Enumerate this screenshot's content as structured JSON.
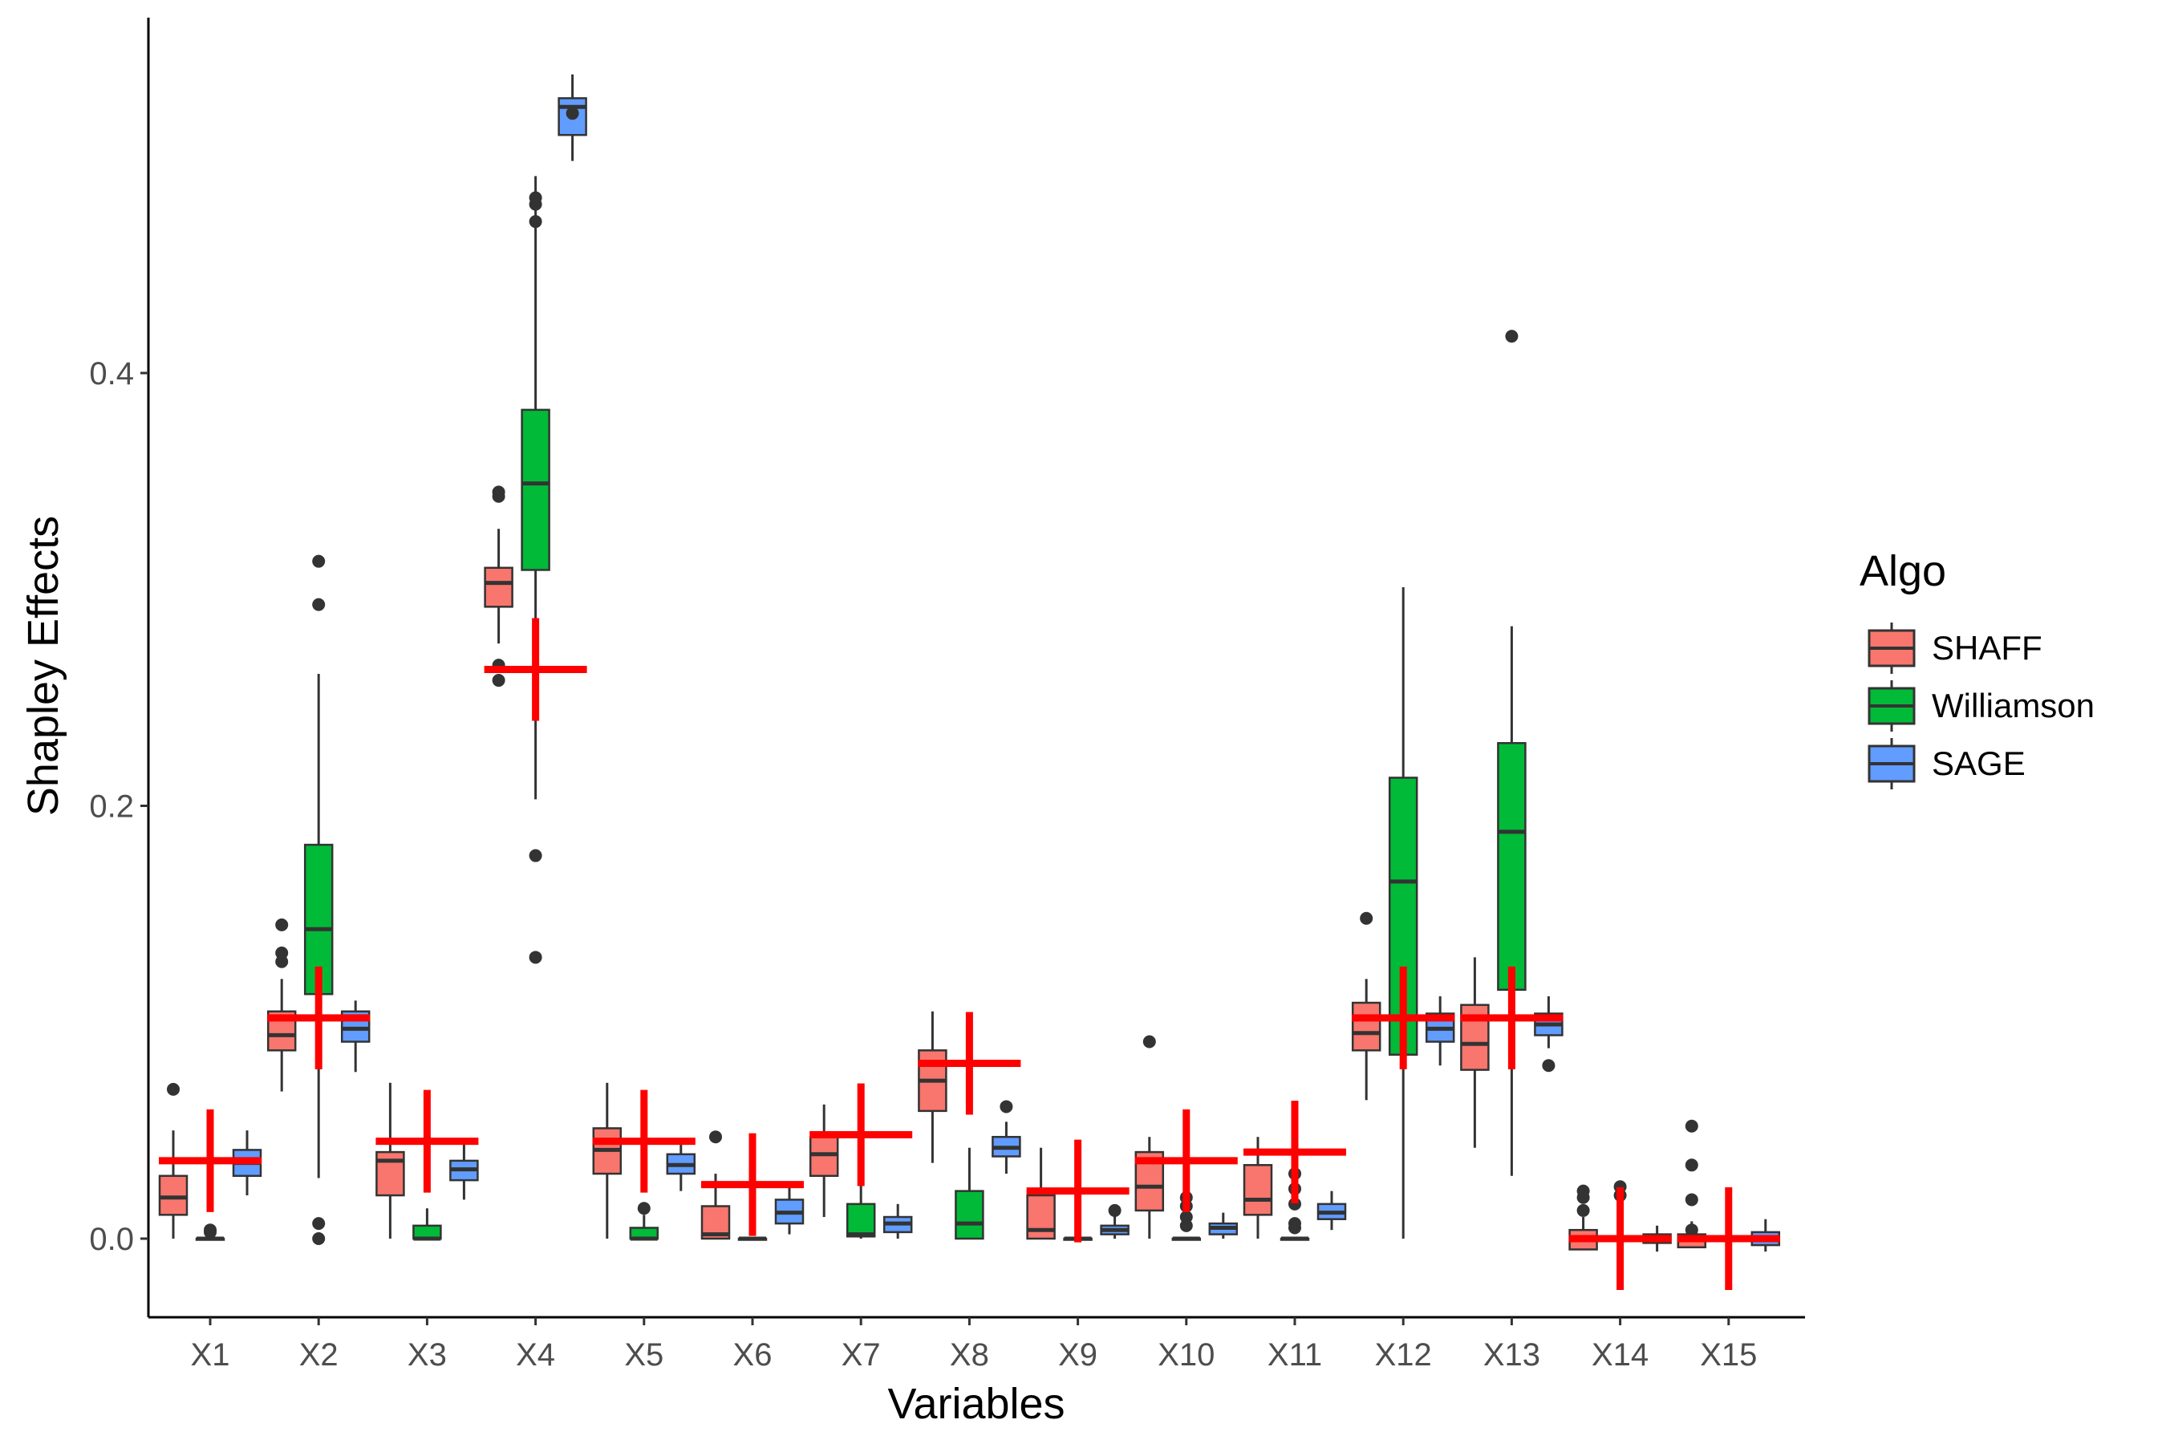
{
  "chart_data": {
    "type": "boxplot",
    "title": "",
    "xlabel": "Variables",
    "ylabel": "Shapley Effects",
    "ylim": [
      -0.037,
      0.555
    ],
    "yticks": [
      0.0,
      0.2,
      0.4
    ],
    "ytick_labels": [
      "0.0",
      "0.2",
      "0.4"
    ],
    "grid": false,
    "legend_position": "right",
    "legend_title": "Algo",
    "categories": [
      "X1",
      "X2",
      "X3",
      "X4",
      "X5",
      "X6",
      "X7",
      "X8",
      "X9",
      "X10",
      "X11",
      "X12",
      "X13",
      "X14",
      "X15"
    ],
    "series": [
      {
        "name": "SHAFF",
        "color": "#F8766D",
        "boxes": [
          {
            "q1": 0.011,
            "median": 0.019,
            "q3": 0.029,
            "whislo": 0.0,
            "whishi": 0.05,
            "outliers": [
              0.069
            ]
          },
          {
            "q1": 0.087,
            "median": 0.094,
            "q3": 0.105,
            "whislo": 0.068,
            "whishi": 0.12,
            "outliers": [
              0.145,
              0.132,
              0.128
            ]
          },
          {
            "q1": 0.02,
            "median": 0.036,
            "q3": 0.04,
            "whislo": 0.0,
            "whishi": 0.072,
            "outliers": []
          },
          {
            "q1": 0.292,
            "median": 0.303,
            "q3": 0.31,
            "whislo": 0.275,
            "whishi": 0.328,
            "outliers": [
              0.345,
              0.343,
              0.265,
              0.258
            ]
          },
          {
            "q1": 0.03,
            "median": 0.041,
            "q3": 0.051,
            "whislo": 0.0,
            "whishi": 0.072,
            "outliers": []
          },
          {
            "q1": 0.0,
            "median": 0.002,
            "q3": 0.015,
            "whislo": 0.0,
            "whishi": 0.03,
            "outliers": [
              0.047
            ]
          },
          {
            "q1": 0.029,
            "median": 0.039,
            "q3": 0.047,
            "whislo": 0.01,
            "whishi": 0.062,
            "outliers": []
          },
          {
            "q1": 0.059,
            "median": 0.073,
            "q3": 0.087,
            "whislo": 0.035,
            "whishi": 0.105,
            "outliers": []
          },
          {
            "q1": 0.0,
            "median": 0.004,
            "q3": 0.02,
            "whislo": 0.0,
            "whishi": 0.042,
            "outliers": []
          },
          {
            "q1": 0.013,
            "median": 0.024,
            "q3": 0.04,
            "whislo": 0.0,
            "whishi": 0.047,
            "outliers": [
              0.091
            ]
          },
          {
            "q1": 0.011,
            "median": 0.018,
            "q3": 0.034,
            "whislo": 0.0,
            "whishi": 0.047,
            "outliers": []
          },
          {
            "q1": 0.087,
            "median": 0.095,
            "q3": 0.109,
            "whislo": 0.064,
            "whishi": 0.12,
            "outliers": [
              0.148
            ]
          },
          {
            "q1": 0.078,
            "median": 0.09,
            "q3": 0.108,
            "whislo": 0.042,
            "whishi": 0.13,
            "outliers": []
          },
          {
            "q1": -0.005,
            "median": 0.0,
            "q3": 0.004,
            "whislo": -0.005,
            "whishi": 0.01,
            "outliers": [
              0.022,
              0.019,
              0.013
            ]
          },
          {
            "q1": -0.004,
            "median": 0.0,
            "q3": 0.002,
            "whislo": -0.004,
            "whishi": 0.008,
            "outliers": [
              0.052,
              0.034,
              0.018,
              0.004
            ]
          }
        ]
      },
      {
        "name": "Williamson",
        "color": "#00BA38",
        "boxes": [
          {
            "q1": 0.0,
            "median": 0.0,
            "q3": 0.0,
            "whislo": 0.0,
            "whishi": 0.0,
            "outliers": [
              0.004,
              0.003
            ]
          },
          {
            "q1": 0.113,
            "median": 0.143,
            "q3": 0.182,
            "whislo": 0.028,
            "whishi": 0.261,
            "outliers": [
              0.313,
              0.293,
              0.007,
              0.0
            ]
          },
          {
            "q1": 0.0,
            "median": 0.0,
            "q3": 0.006,
            "whislo": 0.0,
            "whishi": 0.014,
            "outliers": []
          },
          {
            "q1": 0.309,
            "median": 0.349,
            "q3": 0.383,
            "whislo": 0.203,
            "whishi": 0.491,
            "outliers": [
              0.481,
              0.478,
              0.47,
              0.177,
              0.13
            ]
          },
          {
            "q1": 0.0,
            "median": 0.0,
            "q3": 0.005,
            "whislo": 0.0,
            "whishi": 0.011,
            "outliers": [
              0.014
            ]
          },
          {
            "q1": 0.0,
            "median": 0.0,
            "q3": 0.0,
            "whislo": 0.0,
            "whishi": 0.0,
            "outliers": []
          },
          {
            "q1": 0.001,
            "median": 0.002,
            "q3": 0.016,
            "whislo": 0.0,
            "whishi": 0.032,
            "outliers": []
          },
          {
            "q1": 0.0,
            "median": 0.007,
            "q3": 0.022,
            "whislo": 0.0,
            "whishi": 0.042,
            "outliers": []
          },
          {
            "q1": 0.0,
            "median": 0.0,
            "q3": 0.0,
            "whislo": 0.0,
            "whishi": 0.0,
            "outliers": []
          },
          {
            "q1": 0.0,
            "median": 0.0,
            "q3": 0.0,
            "whislo": 0.0,
            "whishi": 0.0,
            "outliers": [
              0.019,
              0.015,
              0.01,
              0.006
            ]
          },
          {
            "q1": 0.0,
            "median": 0.0,
            "q3": 0.0,
            "whislo": 0.0,
            "whishi": 0.0,
            "outliers": [
              0.03,
              0.023,
              0.016,
              0.007,
              0.005
            ]
          },
          {
            "q1": 0.085,
            "median": 0.165,
            "q3": 0.213,
            "whislo": 0.0,
            "whishi": 0.301,
            "outliers": []
          },
          {
            "q1": 0.115,
            "median": 0.188,
            "q3": 0.229,
            "whislo": 0.029,
            "whishi": 0.283,
            "outliers": [
              0.417
            ]
          },
          {
            "q1": 0.0,
            "median": 0.0,
            "q3": 0.0,
            "whislo": 0.0,
            "whishi": 0.0,
            "outliers": [
              0.024,
              0.02
            ]
          },
          {
            "q1": 0.0,
            "median": 0.0,
            "q3": 0.0,
            "whislo": 0.0,
            "whishi": 0.0,
            "outliers": []
          }
        ]
      },
      {
        "name": "SAGE",
        "color": "#619CFF",
        "boxes": [
          {
            "q1": 0.029,
            "median": 0.035,
            "q3": 0.041,
            "whislo": 0.02,
            "whishi": 0.05,
            "outliers": []
          },
          {
            "q1": 0.091,
            "median": 0.097,
            "q3": 0.105,
            "whislo": 0.077,
            "whishi": 0.11,
            "outliers": []
          },
          {
            "q1": 0.027,
            "median": 0.032,
            "q3": 0.036,
            "whislo": 0.018,
            "whishi": 0.044,
            "outliers": []
          },
          {
            "q1": 0.51,
            "median": 0.523,
            "q3": 0.527,
            "whislo": 0.498,
            "whishi": 0.538,
            "outliers": [
              0.52
            ]
          },
          {
            "q1": 0.03,
            "median": 0.034,
            "q3": 0.039,
            "whislo": 0.022,
            "whishi": 0.046,
            "outliers": []
          },
          {
            "q1": 0.007,
            "median": 0.012,
            "q3": 0.018,
            "whislo": 0.002,
            "whishi": 0.026,
            "outliers": []
          },
          {
            "q1": 0.003,
            "median": 0.007,
            "q3": 0.01,
            "whislo": 0.0,
            "whishi": 0.016,
            "outliers": []
          },
          {
            "q1": 0.038,
            "median": 0.042,
            "q3": 0.047,
            "whislo": 0.03,
            "whishi": 0.054,
            "outliers": [
              0.061
            ]
          },
          {
            "q1": 0.002,
            "median": 0.004,
            "q3": 0.006,
            "whislo": 0.0,
            "whishi": 0.012,
            "outliers": [
              0.013
            ]
          },
          {
            "q1": 0.002,
            "median": 0.005,
            "q3": 0.007,
            "whislo": 0.0,
            "whishi": 0.012,
            "outliers": []
          },
          {
            "q1": 0.009,
            "median": 0.012,
            "q3": 0.016,
            "whislo": 0.004,
            "whishi": 0.022,
            "outliers": []
          },
          {
            "q1": 0.091,
            "median": 0.097,
            "q3": 0.104,
            "whislo": 0.08,
            "whishi": 0.112,
            "outliers": []
          },
          {
            "q1": 0.094,
            "median": 0.099,
            "q3": 0.104,
            "whislo": 0.088,
            "whishi": 0.112,
            "outliers": [
              0.08
            ]
          },
          {
            "q1": -0.002,
            "median": 0.0,
            "q3": 0.002,
            "whislo": -0.006,
            "whishi": 0.006,
            "outliers": []
          },
          {
            "q1": -0.003,
            "median": 0.0,
            "q3": 0.003,
            "whislo": -0.006,
            "whishi": 0.009,
            "outliers": []
          }
        ]
      }
    ],
    "true_values": {
      "color": "#FF0000",
      "values": [
        0.036,
        0.102,
        0.045,
        0.263,
        0.045,
        0.025,
        0.048,
        0.081,
        0.022,
        0.036,
        0.04,
        0.102,
        0.102,
        0.0,
        0.0
      ]
    }
  }
}
